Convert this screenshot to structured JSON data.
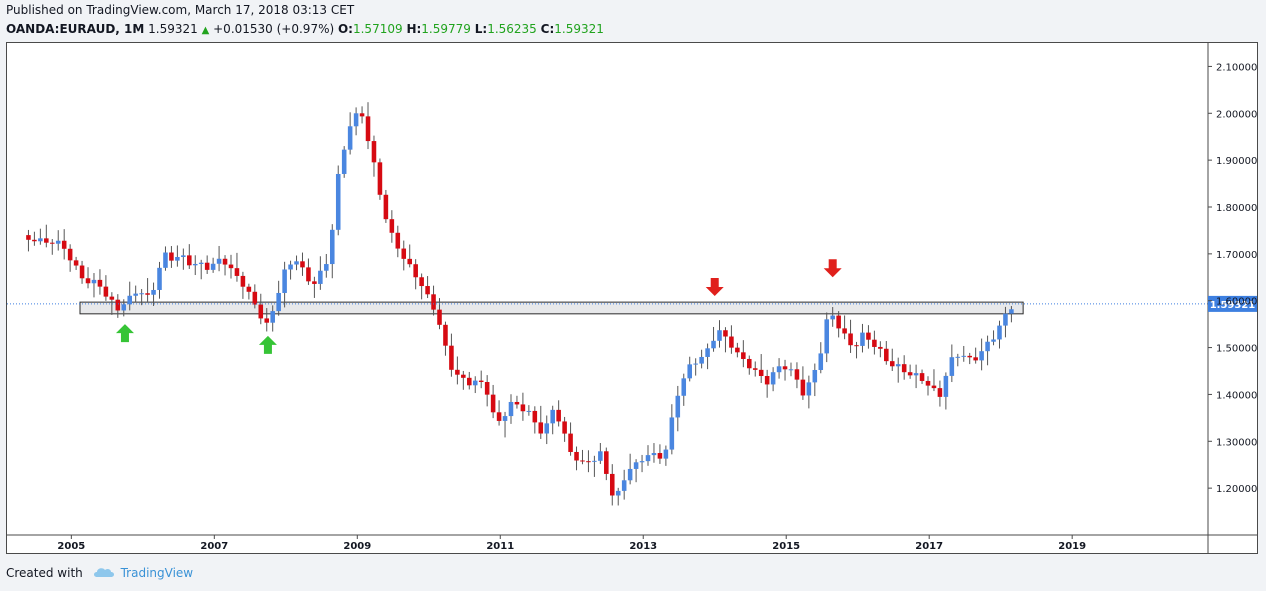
{
  "header": {
    "published": "Published on TradingView.com, March 17, 2018 03:13 CET",
    "symbol": "OANDA:EURAUD, 1M",
    "last": "1.59321",
    "change": "+0.01530 (+0.97%)",
    "o_label": "O:",
    "o_value": "1.57109",
    "h_label": "H:",
    "h_value": "1.59779",
    "l_label": "L:",
    "l_value": "1.56235",
    "c_label": "C:",
    "c_value": "1.59321"
  },
  "footer": {
    "created": "Created with",
    "brand": "TradingView"
  },
  "colors": {
    "up": "#4a86e0",
    "down": "#d60a12",
    "support_arrow": "#36c436",
    "resistance_arrow": "#e0201c",
    "price_tag": "#3d7fe0",
    "zone_fill": "#e7e8ea"
  },
  "chart_data": {
    "type": "candlestick",
    "symbol": "OANDA:EURAUD",
    "interval": "1M",
    "y_ticks": [
      "2.10000",
      "2.00000",
      "1.90000",
      "1.80000",
      "1.70000",
      "1.60000",
      "1.50000",
      "1.40000",
      "1.30000",
      "1.20000"
    ],
    "y_tick_values": [
      2.1,
      2.0,
      1.9,
      1.8,
      1.7,
      1.6,
      1.5,
      1.4,
      1.3,
      1.2
    ],
    "x_ticks": [
      "2005",
      "2007",
      "2009",
      "2011",
      "2013",
      "2015",
      "2017",
      "2019"
    ],
    "x_tick_values": [
      2005,
      2007,
      2009,
      2011,
      2013,
      2015,
      2017,
      2019
    ],
    "ylim": [
      1.1,
      2.15
    ],
    "xlim": [
      2004.1,
      2020.9
    ],
    "last_price_label": "1.59321",
    "last_price": 1.59321,
    "support_resistance_zone": [
      1.572,
      1.597
    ],
    "support_arrows": [
      {
        "x": 2005.75,
        "y": 1.55
      },
      {
        "x": 2007.75,
        "y": 1.525
      }
    ],
    "resistance_arrows": [
      {
        "x": 2014.0,
        "y": 1.61
      },
      {
        "x": 2015.65,
        "y": 1.65
      }
    ],
    "close_path": [
      [
        2004.4,
        1.73
      ],
      [
        2004.6,
        1.72
      ],
      [
        2004.9,
        1.71
      ],
      [
        2005.1,
        1.66
      ],
      [
        2005.4,
        1.64
      ],
      [
        2005.65,
        1.58
      ],
      [
        2005.9,
        1.61
      ],
      [
        2006.1,
        1.6
      ],
      [
        2006.3,
        1.7
      ],
      [
        2006.55,
        1.7
      ],
      [
        2006.9,
        1.67
      ],
      [
        2007.1,
        1.68
      ],
      [
        2007.35,
        1.64
      ],
      [
        2007.55,
        1.6
      ],
      [
        2007.75,
        1.55
      ],
      [
        2007.95,
        1.66
      ],
      [
        2008.15,
        1.69
      ],
      [
        2008.35,
        1.62
      ],
      [
        2008.6,
        1.68
      ],
      [
        2008.75,
        1.89
      ],
      [
        2008.9,
        1.98
      ],
      [
        2009.05,
        2.02
      ],
      [
        2009.25,
        1.88
      ],
      [
        2009.45,
        1.74
      ],
      [
        2009.7,
        1.67
      ],
      [
        2009.95,
        1.62
      ],
      [
        2010.1,
        1.58
      ],
      [
        2010.35,
        1.45
      ],
      [
        2010.55,
        1.43
      ],
      [
        2010.8,
        1.41
      ],
      [
        2010.95,
        1.32
      ],
      [
        2011.15,
        1.38
      ],
      [
        2011.4,
        1.37
      ],
      [
        2011.6,
        1.32
      ],
      [
        2011.75,
        1.38
      ],
      [
        2011.95,
        1.28
      ],
      [
        2012.15,
        1.24
      ],
      [
        2012.4,
        1.27
      ],
      [
        2012.6,
        1.18
      ],
      [
        2012.8,
        1.25
      ],
      [
        2013.05,
        1.27
      ],
      [
        2013.3,
        1.26
      ],
      [
        2013.5,
        1.41
      ],
      [
        2013.7,
        1.47
      ],
      [
        2013.9,
        1.5
      ],
      [
        2014.05,
        1.55
      ],
      [
        2014.3,
        1.49
      ],
      [
        2014.55,
        1.44
      ],
      [
        2014.75,
        1.42
      ],
      [
        2014.95,
        1.47
      ],
      [
        2015.1,
        1.45
      ],
      [
        2015.25,
        1.41
      ],
      [
        2015.45,
        1.47
      ],
      [
        2015.6,
        1.58
      ],
      [
        2015.75,
        1.53
      ],
      [
        2015.95,
        1.49
      ],
      [
        2016.1,
        1.53
      ],
      [
        2016.35,
        1.49
      ],
      [
        2016.6,
        1.46
      ],
      [
        2016.8,
        1.44
      ],
      [
        2017.0,
        1.41
      ],
      [
        2017.15,
        1.39
      ],
      [
        2017.35,
        1.49
      ],
      [
        2017.55,
        1.48
      ],
      [
        2017.75,
        1.5
      ],
      [
        2017.95,
        1.54
      ],
      [
        2018.1,
        1.57
      ],
      [
        2018.2,
        1.59321
      ]
    ]
  }
}
